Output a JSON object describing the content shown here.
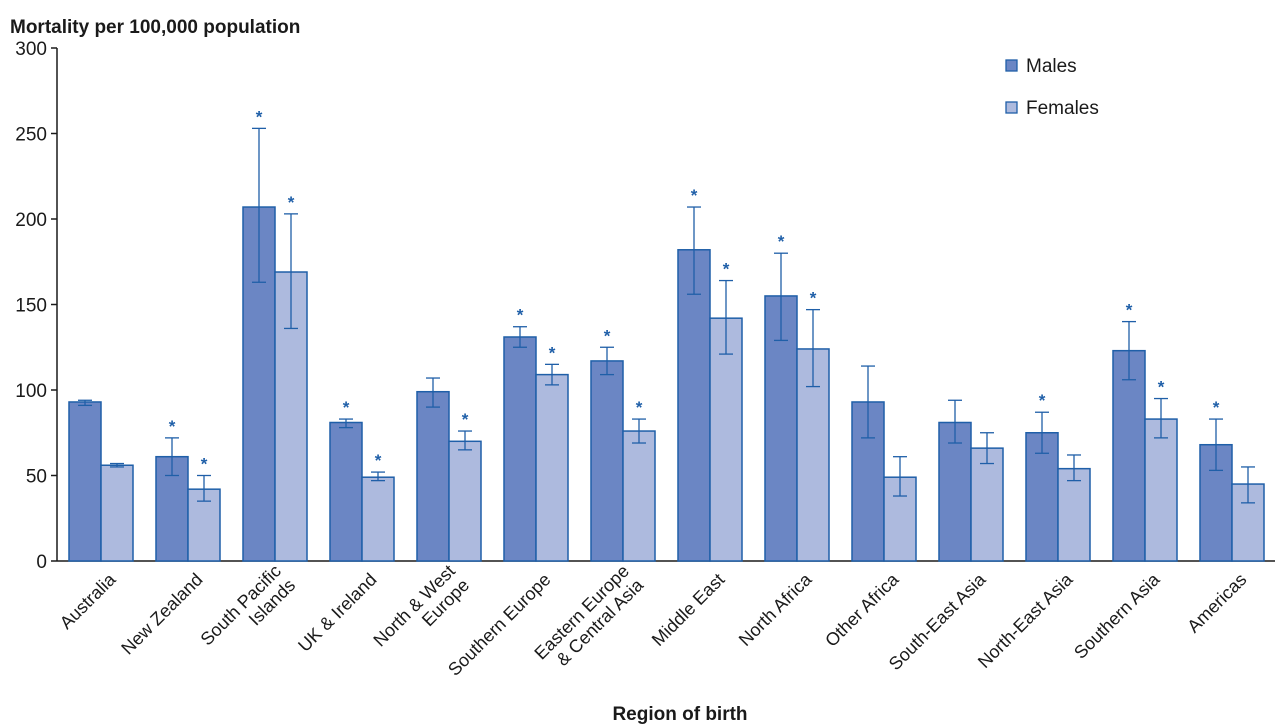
{
  "chart_data": {
    "type": "bar",
    "ylabel": "Mortality per 100,000 population",
    "xlabel": "Region of birth",
    "ylim": [
      0,
      300
    ],
    "yticks": [
      0,
      50,
      100,
      150,
      200,
      250,
      300
    ],
    "grid": false,
    "legend_position": "top-right",
    "significance_marker": "*",
    "categories": [
      [
        "Australia"
      ],
      [
        "New Zealand"
      ],
      [
        "South Pacific",
        "Islands"
      ],
      [
        "UK & Ireland"
      ],
      [
        "North & West",
        "Europe"
      ],
      [
        "Southern Europe"
      ],
      [
        "Eastern Europe",
        "& Central Asia"
      ],
      [
        "Middle East"
      ],
      [
        "North Africa"
      ],
      [
        "Other Africa"
      ],
      [
        "South-East Asia"
      ],
      [
        "North-East Asia"
      ],
      [
        "Southern Asia"
      ],
      [
        "Americas"
      ]
    ],
    "series": [
      {
        "name": "Males",
        "color": "#6b86c4",
        "values": [
          93,
          61,
          207,
          81,
          99,
          131,
          117,
          182,
          155,
          93,
          81,
          75,
          123,
          68
        ],
        "err_low": [
          91,
          50,
          163,
          78,
          90,
          125,
          109,
          156,
          129,
          72,
          69,
          63,
          106,
          53
        ],
        "err_high": [
          94,
          72,
          253,
          83,
          107,
          137,
          125,
          207,
          180,
          114,
          94,
          87,
          140,
          83
        ],
        "significant": [
          false,
          true,
          true,
          true,
          false,
          true,
          true,
          true,
          true,
          false,
          false,
          true,
          true,
          true
        ]
      },
      {
        "name": "Females",
        "color": "#adbade",
        "values": [
          56,
          42,
          169,
          49,
          70,
          109,
          76,
          142,
          124,
          49,
          66,
          54,
          83,
          45
        ],
        "err_low": [
          55,
          35,
          136,
          47,
          65,
          103,
          69,
          121,
          102,
          38,
          57,
          47,
          72,
          34
        ],
        "err_high": [
          57,
          50,
          203,
          52,
          76,
          115,
          83,
          164,
          147,
          61,
          75,
          62,
          95,
          55
        ],
        "significant": [
          false,
          true,
          true,
          true,
          true,
          true,
          true,
          true,
          true,
          false,
          false,
          false,
          true,
          false
        ]
      }
    ]
  }
}
